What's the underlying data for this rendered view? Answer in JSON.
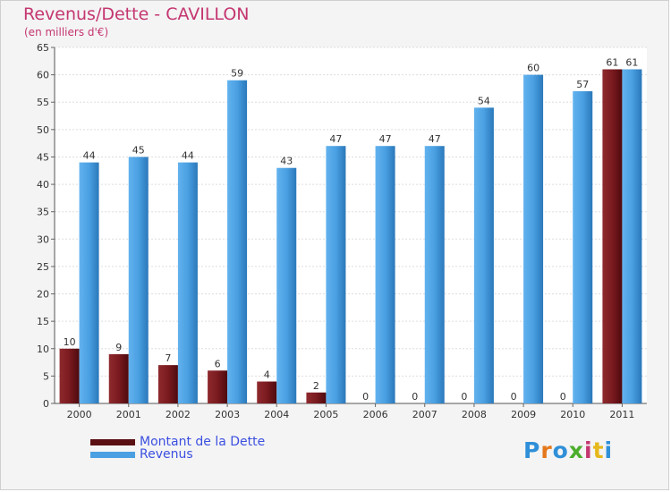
{
  "title": "Revenus/Dette - CAVILLON",
  "subtitle": "(en milliers d'€)",
  "logo": {
    "text": "Proxiti",
    "colors": [
      "#2f8fd8",
      "#e5781c",
      "#2f8fd8",
      "#4cae2c",
      "#c43670",
      "#e5b81c",
      "#2f8fd8"
    ]
  },
  "chart_data": {
    "type": "bar",
    "title": "Revenus/Dette - CAVILLON",
    "ylabel": "(en milliers d'€)",
    "xlabel": "",
    "ylim": [
      0,
      65
    ],
    "yticks": [
      0,
      5,
      10,
      15,
      20,
      25,
      30,
      35,
      40,
      45,
      50,
      55,
      60,
      65
    ],
    "grid": true,
    "categories": [
      "2000",
      "2001",
      "2002",
      "2003",
      "2004",
      "2005",
      "2006",
      "2007",
      "2008",
      "2009",
      "2010",
      "2011"
    ],
    "series": [
      {
        "name": "Montant de la Dette",
        "color": "#7a1a1f",
        "values": [
          10,
          9,
          7,
          6,
          4,
          2,
          0,
          0,
          0,
          0,
          0,
          61
        ]
      },
      {
        "name": "Revenus",
        "color": "#4aa0e2",
        "values": [
          44,
          45,
          44,
          59,
          43,
          47,
          47,
          47,
          54,
          60,
          57,
          61
        ]
      }
    ],
    "legend": "bottom-left"
  }
}
